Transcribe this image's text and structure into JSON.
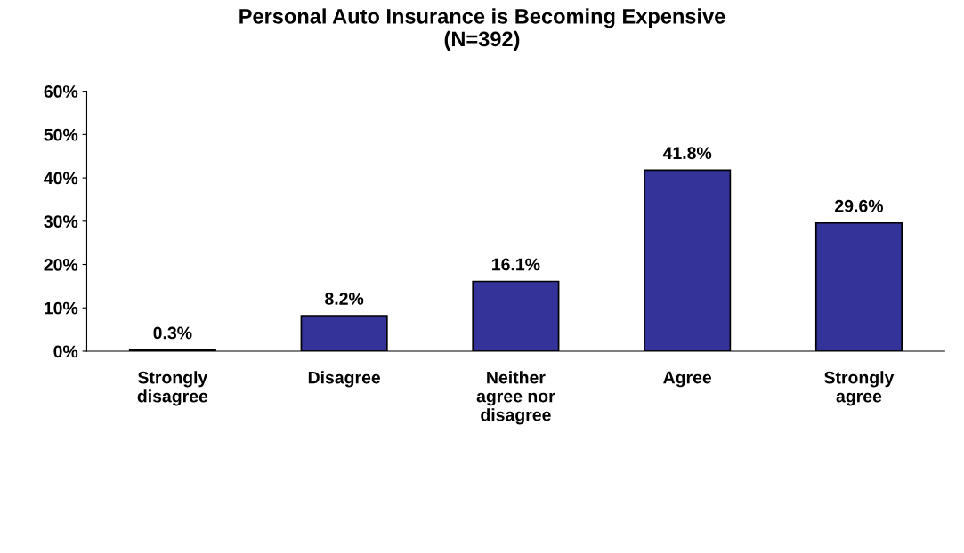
{
  "chart_data": {
    "type": "bar",
    "title": "Personal Auto Insurance is Becoming Expensive\n(N=392)",
    "categories": [
      "Strongly\ndisagree",
      "Disagree",
      "Neither\nagree nor\ndisagree",
      "Agree",
      "Strongly\nagree"
    ],
    "values": [
      0.3,
      8.2,
      16.1,
      41.8,
      29.6
    ],
    "value_labels": [
      "0.3%",
      "8.2%",
      "16.1%",
      "41.8%",
      "29.6%"
    ],
    "color": "#333399",
    "ylim": [
      0,
      60
    ],
    "yticks": [
      {
        "value": 0,
        "label": "0%"
      },
      {
        "value": 10,
        "label": "10%"
      },
      {
        "value": 20,
        "label": "20%"
      },
      {
        "value": 30,
        "label": "30%"
      },
      {
        "value": 40,
        "label": "40%"
      },
      {
        "value": 50,
        "label": "50%"
      },
      {
        "value": 60,
        "label": "60%"
      }
    ],
    "grid": false,
    "legend": false
  }
}
